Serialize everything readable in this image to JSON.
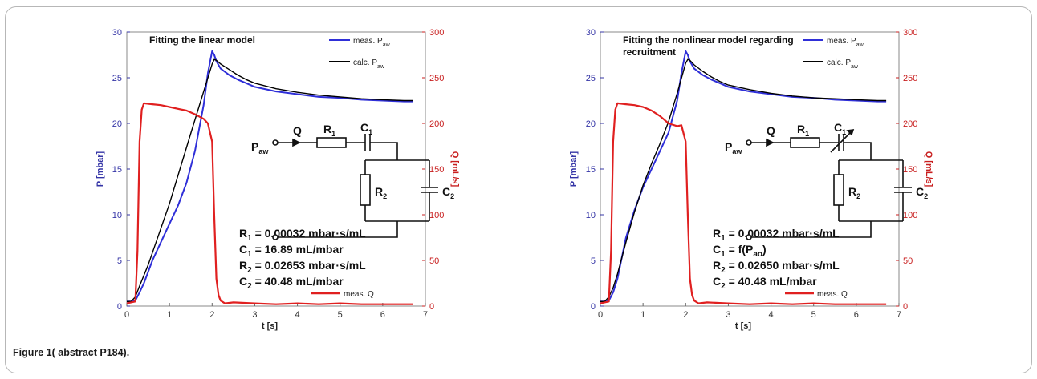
{
  "caption": "Figure 1( abstract P184).",
  "colors": {
    "left_axis": "#3434a6",
    "right_axis": "#c81e1e",
    "meas_paw": "#2f2fd8",
    "calc_paw": "#000000",
    "meas_q": "#e02020"
  },
  "chart_data": [
    {
      "type": "line",
      "title": "Fitting the linear model",
      "xlabel": "t [s]",
      "ylabel": "P [mbar]",
      "y2label": "Q [mL/s]",
      "xlim": [
        0,
        7
      ],
      "ylim": [
        0,
        30
      ],
      "y2lim": [
        0,
        300
      ],
      "xticks": [
        "0",
        "1",
        "2",
        "3",
        "4",
        "5",
        "6",
        "7"
      ],
      "yticks": [
        "0",
        "5",
        "10",
        "15",
        "20",
        "25",
        "30"
      ],
      "y2ticks": [
        "0",
        "50",
        "100",
        "150",
        "200",
        "250",
        "300"
      ],
      "legend_position": "top-right",
      "series": [
        {
          "name": "meas. P",
          "name_sub": "aw",
          "axis": "left",
          "x": [
            0,
            0.1,
            0.2,
            0.3,
            0.4,
            0.6,
            0.8,
            1.0,
            1.2,
            1.4,
            1.6,
            1.8,
            1.9,
            2.0,
            2.05,
            2.1,
            2.2,
            2.4,
            2.6,
            2.8,
            3.0,
            3.5,
            4.0,
            4.5,
            5.0,
            5.5,
            6.0,
            6.5,
            6.7
          ],
          "y": [
            0.5,
            0.5,
            0.6,
            1.5,
            2.5,
            5.0,
            7.0,
            9.0,
            11.0,
            13.5,
            17.0,
            22.0,
            25.5,
            27.9,
            27.5,
            26.8,
            26.0,
            25.3,
            24.8,
            24.4,
            24.0,
            23.5,
            23.2,
            22.9,
            22.8,
            22.6,
            22.5,
            22.4,
            22.4
          ]
        },
        {
          "name": "calc. P",
          "name_sub": "aw",
          "axis": "left",
          "x": [
            0,
            0.1,
            0.2,
            0.3,
            0.5,
            1.0,
            1.5,
            2.0,
            2.05,
            2.1,
            2.2,
            2.4,
            2.6,
            2.8,
            3.0,
            3.5,
            4.0,
            4.5,
            5.0,
            5.5,
            6.0,
            6.5,
            6.7
          ],
          "y": [
            0.5,
            0.5,
            1.0,
            2.2,
            4.5,
            11.2,
            18.9,
            26.5,
            27.0,
            26.9,
            26.5,
            25.9,
            25.3,
            24.8,
            24.4,
            23.8,
            23.4,
            23.1,
            22.9,
            22.7,
            22.6,
            22.5,
            22.5
          ]
        },
        {
          "name": "meas. Q",
          "axis": "right",
          "x": [
            0,
            0.2,
            0.25,
            0.3,
            0.35,
            0.4,
            0.6,
            0.8,
            1.0,
            1.2,
            1.4,
            1.6,
            1.8,
            1.9,
            2.0,
            2.05,
            2.1,
            2.15,
            2.2,
            2.3,
            2.5,
            3.0,
            3.5,
            4.0,
            4.5,
            5.0,
            5.5,
            6.0,
            6.5,
            6.7
          ],
          "y": [
            3,
            5,
            60,
            180,
            215,
            222,
            221,
            220,
            218,
            216,
            214,
            210,
            205,
            200,
            180,
            100,
            30,
            12,
            6,
            3,
            4,
            3,
            2,
            3,
            2,
            3,
            2,
            2,
            2,
            2
          ]
        }
      ],
      "annotations": [
        "R1 = 0.00032 mbar·s/mL",
        "C1 = 16.89 mL/mbar",
        "R2 = 0.02653 mbar·s/mL",
        "C2 = 40.48 mL/mbar"
      ],
      "circuit": {
        "paw_label": "P",
        "paw_sub": "aw",
        "q_label": "Q",
        "r1": "R",
        "r1_sub": "1",
        "c1": "C",
        "c1_sub": "1",
        "r2": "R",
        "r2_sub": "2",
        "c2": "C",
        "c2_sub": "2",
        "variable_c1": false
      }
    },
    {
      "type": "line",
      "title": "Fitting the nonlinear model regarding recruitment",
      "title_lines": [
        "Fitting the nonlinear model regarding",
        "recruitment"
      ],
      "xlabel": "t [s]",
      "ylabel": "P [mbar]",
      "y2label": "Q [mL/s]",
      "xlim": [
        0,
        7
      ],
      "ylim": [
        0,
        30
      ],
      "y2lim": [
        0,
        300
      ],
      "xticks": [
        "0",
        "1",
        "2",
        "3",
        "4",
        "5",
        "6",
        "7"
      ],
      "yticks": [
        "0",
        "5",
        "10",
        "15",
        "20",
        "25",
        "30"
      ],
      "y2ticks": [
        "0",
        "50",
        "100",
        "150",
        "200",
        "250",
        "300"
      ],
      "legend_position": "top-right",
      "series": [
        {
          "name": "meas. P",
          "name_sub": "aw",
          "axis": "left",
          "x": [
            0,
            0.1,
            0.2,
            0.3,
            0.4,
            0.6,
            0.8,
            1.0,
            1.2,
            1.4,
            1.6,
            1.8,
            1.9,
            2.0,
            2.05,
            2.1,
            2.2,
            2.4,
            2.6,
            2.8,
            3.0,
            3.5,
            4.0,
            4.5,
            5.0,
            5.5,
            6.0,
            6.5,
            6.7
          ],
          "y": [
            0.5,
            0.5,
            0.6,
            1.5,
            3.0,
            7.5,
            10.5,
            13.0,
            15.0,
            17.0,
            19.0,
            22.5,
            25.5,
            27.9,
            27.5,
            26.8,
            26.0,
            25.3,
            24.8,
            24.4,
            24.0,
            23.5,
            23.2,
            22.9,
            22.8,
            22.6,
            22.5,
            22.4,
            22.4
          ]
        },
        {
          "name": "calc. P",
          "name_sub": "aw",
          "axis": "left",
          "x": [
            0,
            0.1,
            0.2,
            0.3,
            0.4,
            0.6,
            0.8,
            1.0,
            1.2,
            1.4,
            1.6,
            1.8,
            2.0,
            2.05,
            2.1,
            2.2,
            2.4,
            2.6,
            2.8,
            3.0,
            3.5,
            4.0,
            4.5,
            5.0,
            5.5,
            6.0,
            6.5,
            6.7
          ],
          "y": [
            0.5,
            0.5,
            1.0,
            2.0,
            3.5,
            7.0,
            10.3,
            13.2,
            15.6,
            17.8,
            20.2,
            23.3,
            26.6,
            27.0,
            26.9,
            26.4,
            25.7,
            25.1,
            24.6,
            24.2,
            23.7,
            23.3,
            23.0,
            22.8,
            22.7,
            22.6,
            22.5,
            22.5
          ]
        },
        {
          "name": "meas. Q",
          "axis": "right",
          "x": [
            0,
            0.2,
            0.25,
            0.3,
            0.35,
            0.4,
            0.6,
            0.8,
            1.0,
            1.2,
            1.4,
            1.6,
            1.8,
            1.9,
            2.0,
            2.05,
            2.1,
            2.15,
            2.2,
            2.3,
            2.5,
            3.0,
            3.5,
            4.0,
            4.5,
            5.0,
            5.5,
            6.0,
            6.5,
            6.7
          ],
          "y": [
            3,
            5,
            60,
            180,
            215,
            222,
            221,
            220,
            218,
            214,
            208,
            200,
            197,
            198,
            180,
            100,
            30,
            12,
            6,
            3,
            4,
            3,
            2,
            3,
            2,
            3,
            2,
            2,
            2,
            2
          ]
        }
      ],
      "annotations": [
        "R1 = 0.00032 mbar·s/mL",
        "C1 = f(Pao)",
        "R2 = 0.02650 mbar·s/mL",
        "C2 = 40.48 mL/mbar"
      ],
      "circuit": {
        "paw_label": "P",
        "paw_sub": "aw",
        "q_label": "Q",
        "r1": "R",
        "r1_sub": "1",
        "c1": "C",
        "c1_sub": "1",
        "r2": "R",
        "r2_sub": "2",
        "c2": "C",
        "c2_sub": "2",
        "variable_c1": true
      }
    }
  ]
}
